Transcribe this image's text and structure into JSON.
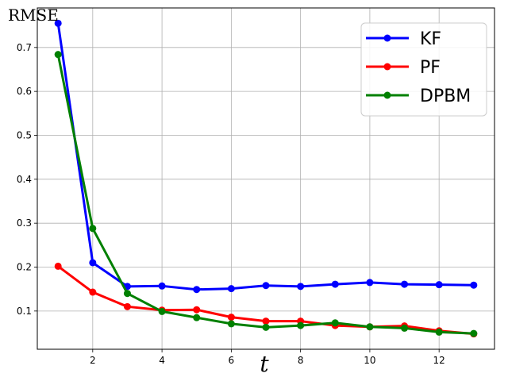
{
  "chart_data": {
    "type": "line",
    "title": "",
    "xlabel": "t",
    "ylabel": "RMSE",
    "x": [
      1,
      2,
      3,
      4,
      5,
      6,
      7,
      8,
      9,
      10,
      11,
      12,
      13
    ],
    "xlim": [
      0.4,
      13.6
    ],
    "ylim": [
      0.013,
      0.79
    ],
    "xticks": [
      2,
      4,
      6,
      8,
      10,
      12
    ],
    "yticks": [
      0.1,
      0.2,
      0.3,
      0.4,
      0.5,
      0.6,
      0.7
    ],
    "grid": true,
    "legend_position": "top-right",
    "series": [
      {
        "name": "KF",
        "color": "#0000ff",
        "values": [
          0.755,
          0.21,
          0.156,
          0.157,
          0.149,
          0.151,
          0.158,
          0.156,
          0.161,
          0.165,
          0.161,
          0.16,
          0.159
        ]
      },
      {
        "name": "PF",
        "color": "#ff0000",
        "values": [
          0.202,
          0.143,
          0.11,
          0.102,
          0.103,
          0.086,
          0.077,
          0.077,
          0.067,
          0.064,
          0.066,
          0.055,
          0.048
        ]
      },
      {
        "name": "DPBM",
        "color": "#008000",
        "values": [
          0.684,
          0.288,
          0.14,
          0.099,
          0.085,
          0.071,
          0.063,
          0.067,
          0.073,
          0.064,
          0.061,
          0.052,
          0.049
        ]
      }
    ]
  }
}
